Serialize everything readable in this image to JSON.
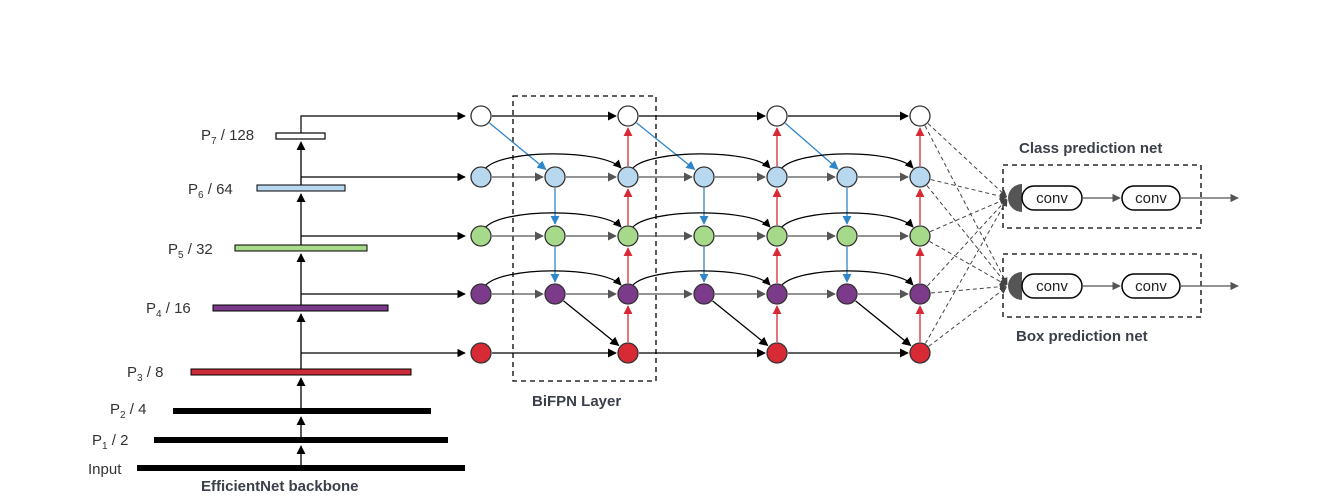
{
  "backbone": {
    "title": "EfficientNet backbone",
    "levels": [
      {
        "base": "Input",
        "sub": "",
        "rest": "",
        "color": "#000000",
        "hollow": false
      },
      {
        "base": "P",
        "sub": "1",
        "rest": " / 2",
        "color": "#000000",
        "hollow": false
      },
      {
        "base": "P",
        "sub": "2",
        "rest": " / 4",
        "color": "#000000",
        "hollow": false
      },
      {
        "base": "P",
        "sub": "3",
        "rest": " / 8",
        "color": "#cc2b3a",
        "hollow": false
      },
      {
        "base": "P",
        "sub": "4",
        "rest": " / 16",
        "color": "#7b3a8a",
        "hollow": false
      },
      {
        "base": "P",
        "sub": "5",
        "rest": " / 32",
        "color": "#a6d98a",
        "hollow": false
      },
      {
        "base": "P",
        "sub": "6",
        "rest": " / 64",
        "color": "#b8d8f0",
        "hollow": false
      },
      {
        "base": "P",
        "sub": "7",
        "rest": " / 128",
        "color": "#ffffff",
        "hollow": true
      }
    ]
  },
  "bifpn": {
    "label": "BiFPN Layer",
    "node_colors": [
      "#d72a35",
      "#7b3a8a",
      "#a6d98a",
      "#b8d8f0",
      "#ffffff"
    ],
    "edge_colors": {
      "top_down": "#2f86c8",
      "bottom_up": "#d72a35",
      "default": "#000000",
      "same_level": "#555555"
    }
  },
  "heads": {
    "class": {
      "title": "Class prediction net",
      "conv1": "conv",
      "conv2": "conv"
    },
    "box": {
      "title": "Box prediction net",
      "conv1": "conv",
      "conv2": "conv"
    }
  }
}
